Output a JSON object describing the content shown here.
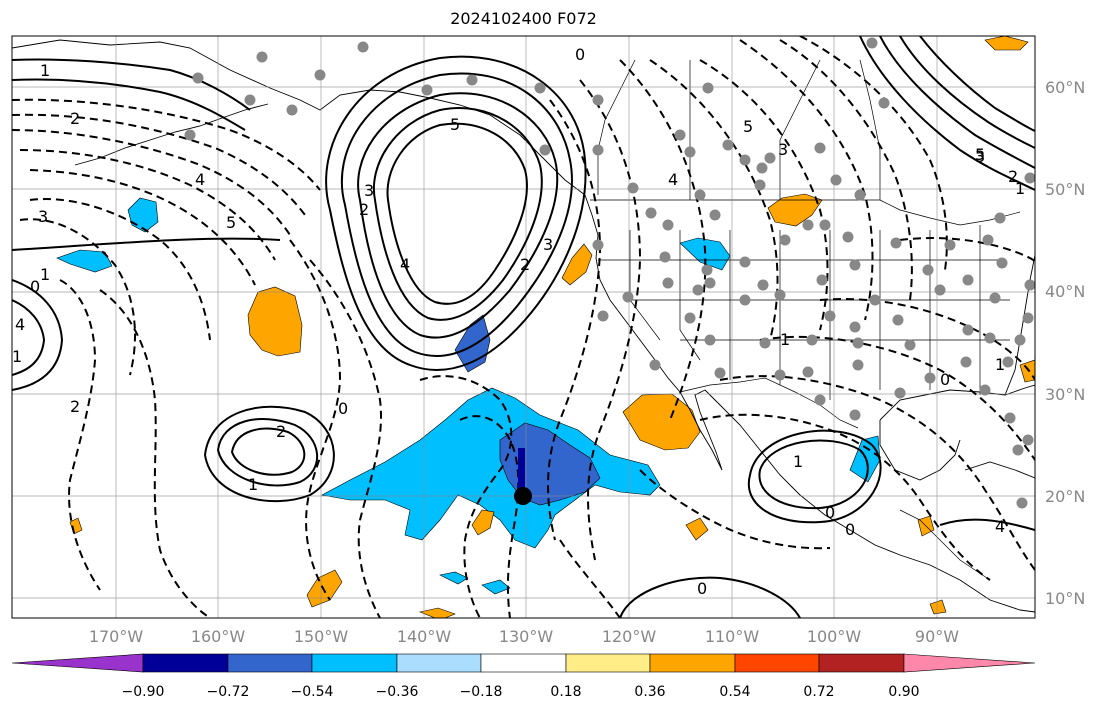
{
  "title": "2024102400 F072",
  "lat_labels": [
    "60°N",
    "50°N",
    "40°N",
    "30°N",
    "20°N",
    "10°N"
  ],
  "lon_labels": [
    "170°W",
    "160°W",
    "150°W",
    "140°W",
    "130°W",
    "120°W",
    "110°W",
    "100°W",
    "90°W"
  ],
  "colorbar": {
    "ticks": [
      "−0.90",
      "−0.72",
      "−0.54",
      "−0.36",
      "−0.18",
      "0.18",
      "0.36",
      "0.54",
      "0.72",
      "0.90"
    ],
    "colors": [
      "#9933cc",
      "#000099",
      "#3366cc",
      "#00bfff",
      "#aaddff",
      "#ffffff",
      "#ffee88",
      "#ffa500",
      "#ff4500",
      "#b22222",
      "#ff88aa"
    ]
  },
  "contour_labels": [
    "1",
    "2",
    "3",
    "4",
    "5",
    "1",
    "2",
    "3",
    "4",
    "5",
    "0",
    "1",
    "2",
    "0",
    "1",
    "2",
    "3",
    "4",
    "5",
    "0",
    "0",
    "1",
    "2",
    "0",
    "0",
    "1",
    "3",
    "4",
    "1",
    "0",
    "1",
    "2",
    "3",
    "4",
    "5"
  ],
  "fill_colors": {
    "neg_light": "#00bfff",
    "neg_mid": "#3366cc",
    "pos": "#ffa500",
    "station": "#888888"
  }
}
